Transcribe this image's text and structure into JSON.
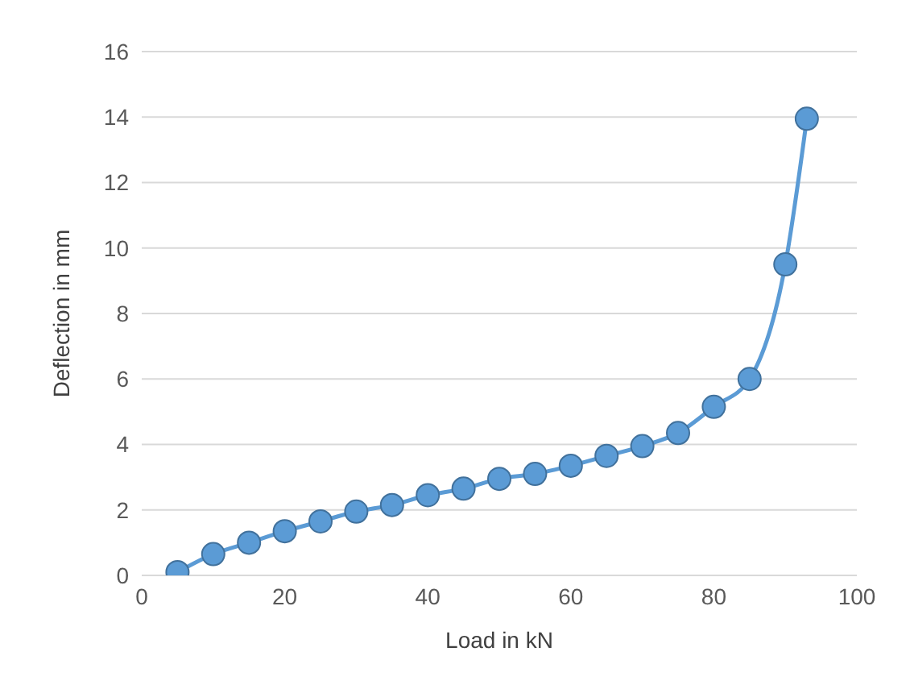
{
  "chart_data": {
    "type": "line",
    "xlabel": "Load in kN",
    "ylabel": "Deflection in mm",
    "x": [
      5,
      10,
      15,
      20,
      25,
      30,
      35,
      40,
      45,
      50,
      55,
      60,
      65,
      70,
      75,
      80,
      85,
      90,
      93
    ],
    "series": [
      {
        "color": "#5b9bd5",
        "values": [
          0.1,
          0.65,
          1.0,
          1.35,
          1.65,
          1.95,
          2.15,
          2.45,
          2.65,
          2.95,
          3.1,
          3.35,
          3.65,
          3.95,
          4.35,
          5.15,
          6.0,
          9.5,
          13.95
        ]
      }
    ],
    "xlim": [
      0,
      100
    ],
    "xticks": [
      0,
      20,
      40,
      60,
      80,
      100
    ],
    "ylim": [
      0,
      16
    ],
    "yticks": [
      0,
      2,
      4,
      6,
      8,
      10,
      12,
      14,
      16
    ],
    "grid": "y",
    "marker": "circle",
    "line_style": "solid"
  }
}
